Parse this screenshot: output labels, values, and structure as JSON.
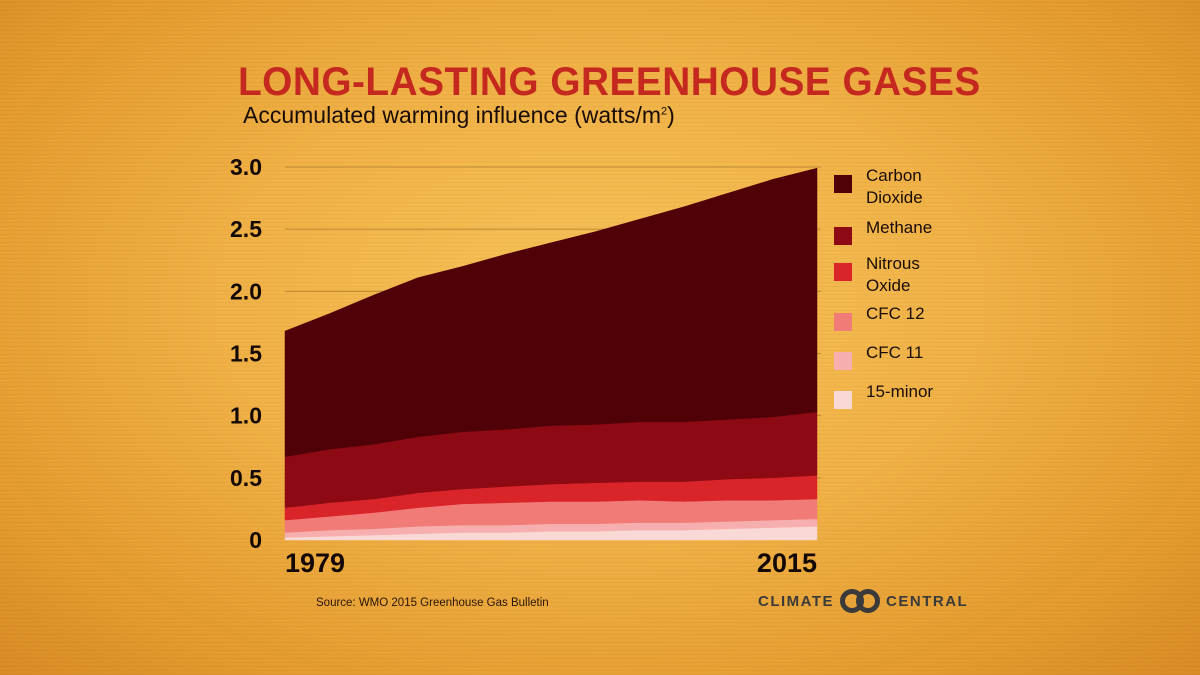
{
  "title": "LONG-LASTING GREENHOUSE GASES",
  "subtitle": "Accumulated warming influence (watts/m",
  "subtitle_superscript": "2",
  "subtitle_close": ")",
  "source": "Source: WMO 2015 Greenhouse Gas Bulletin",
  "logo": {
    "left_text": "CLIMATE",
    "right_text": "CENTRAL",
    "mark_icon": "climate-central-logo-icon"
  },
  "chart_data": {
    "type": "area",
    "stacked": true,
    "title": "LONG-LASTING GREENHOUSE GASES",
    "subtitle": "Accumulated warming influence (watts/m2)",
    "x": [
      1979,
      1982,
      1985,
      1988,
      1991,
      1994,
      1997,
      2000,
      2003,
      2006,
      2009,
      2012,
      2015
    ],
    "x_tick_labels": [
      "1979",
      "2015"
    ],
    "ylim": [
      0,
      3.0
    ],
    "y_ticks": [
      0,
      0.5,
      1.0,
      1.5,
      2.0,
      2.5,
      3.0
    ],
    "y_tick_labels": [
      "0",
      "0.5",
      "1.0",
      "1.5",
      "2.0",
      "2.5",
      "3.0"
    ],
    "grid": "horizontal",
    "legend_position": "right",
    "totals_top": [
      1.68,
      1.82,
      1.97,
      2.11,
      2.2,
      2.3,
      2.39,
      2.48,
      2.58,
      2.68,
      2.79,
      2.9,
      2.99
    ],
    "series": [
      {
        "name": "15-minor",
        "color": "#f9d9d6",
        "values": [
          0.02,
          0.03,
          0.04,
          0.05,
          0.06,
          0.06,
          0.07,
          0.07,
          0.08,
          0.08,
          0.09,
          0.1,
          0.11
        ]
      },
      {
        "name": "CFC 11",
        "color": "#f6afae",
        "values": [
          0.04,
          0.05,
          0.05,
          0.06,
          0.06,
          0.06,
          0.06,
          0.06,
          0.06,
          0.06,
          0.06,
          0.06,
          0.06
        ]
      },
      {
        "name": "CFC 12",
        "color": "#f17b77",
        "values": [
          0.1,
          0.11,
          0.13,
          0.15,
          0.17,
          0.18,
          0.18,
          0.18,
          0.18,
          0.17,
          0.17,
          0.16,
          0.16
        ]
      },
      {
        "name": "Nitrous Oxide",
        "color": "#d9242a",
        "values": [
          0.1,
          0.11,
          0.11,
          0.12,
          0.12,
          0.13,
          0.14,
          0.15,
          0.15,
          0.16,
          0.17,
          0.18,
          0.19
        ]
      },
      {
        "name": "Methane",
        "color": "#8d0a14",
        "values": [
          0.41,
          0.43,
          0.44,
          0.45,
          0.46,
          0.46,
          0.47,
          0.47,
          0.48,
          0.48,
          0.48,
          0.49,
          0.51
        ]
      },
      {
        "name": "Carbon Dioxide",
        "color": "#500007",
        "values": [
          1.01,
          1.09,
          1.2,
          1.28,
          1.33,
          1.41,
          1.47,
          1.55,
          1.63,
          1.73,
          1.82,
          1.91,
          1.96
        ]
      }
    ]
  },
  "legend_items": [
    {
      "label": "Carbon Dioxide",
      "color": "#500007"
    },
    {
      "label": "Methane",
      "color": "#8d0a14"
    },
    {
      "label": "Nitrous Oxide",
      "color": "#d9242a"
    },
    {
      "label": "CFC 12",
      "color": "#f17b77"
    },
    {
      "label": "CFC 11",
      "color": "#f6afae"
    },
    {
      "label": "15-minor",
      "color": "#f9d9d6"
    }
  ]
}
